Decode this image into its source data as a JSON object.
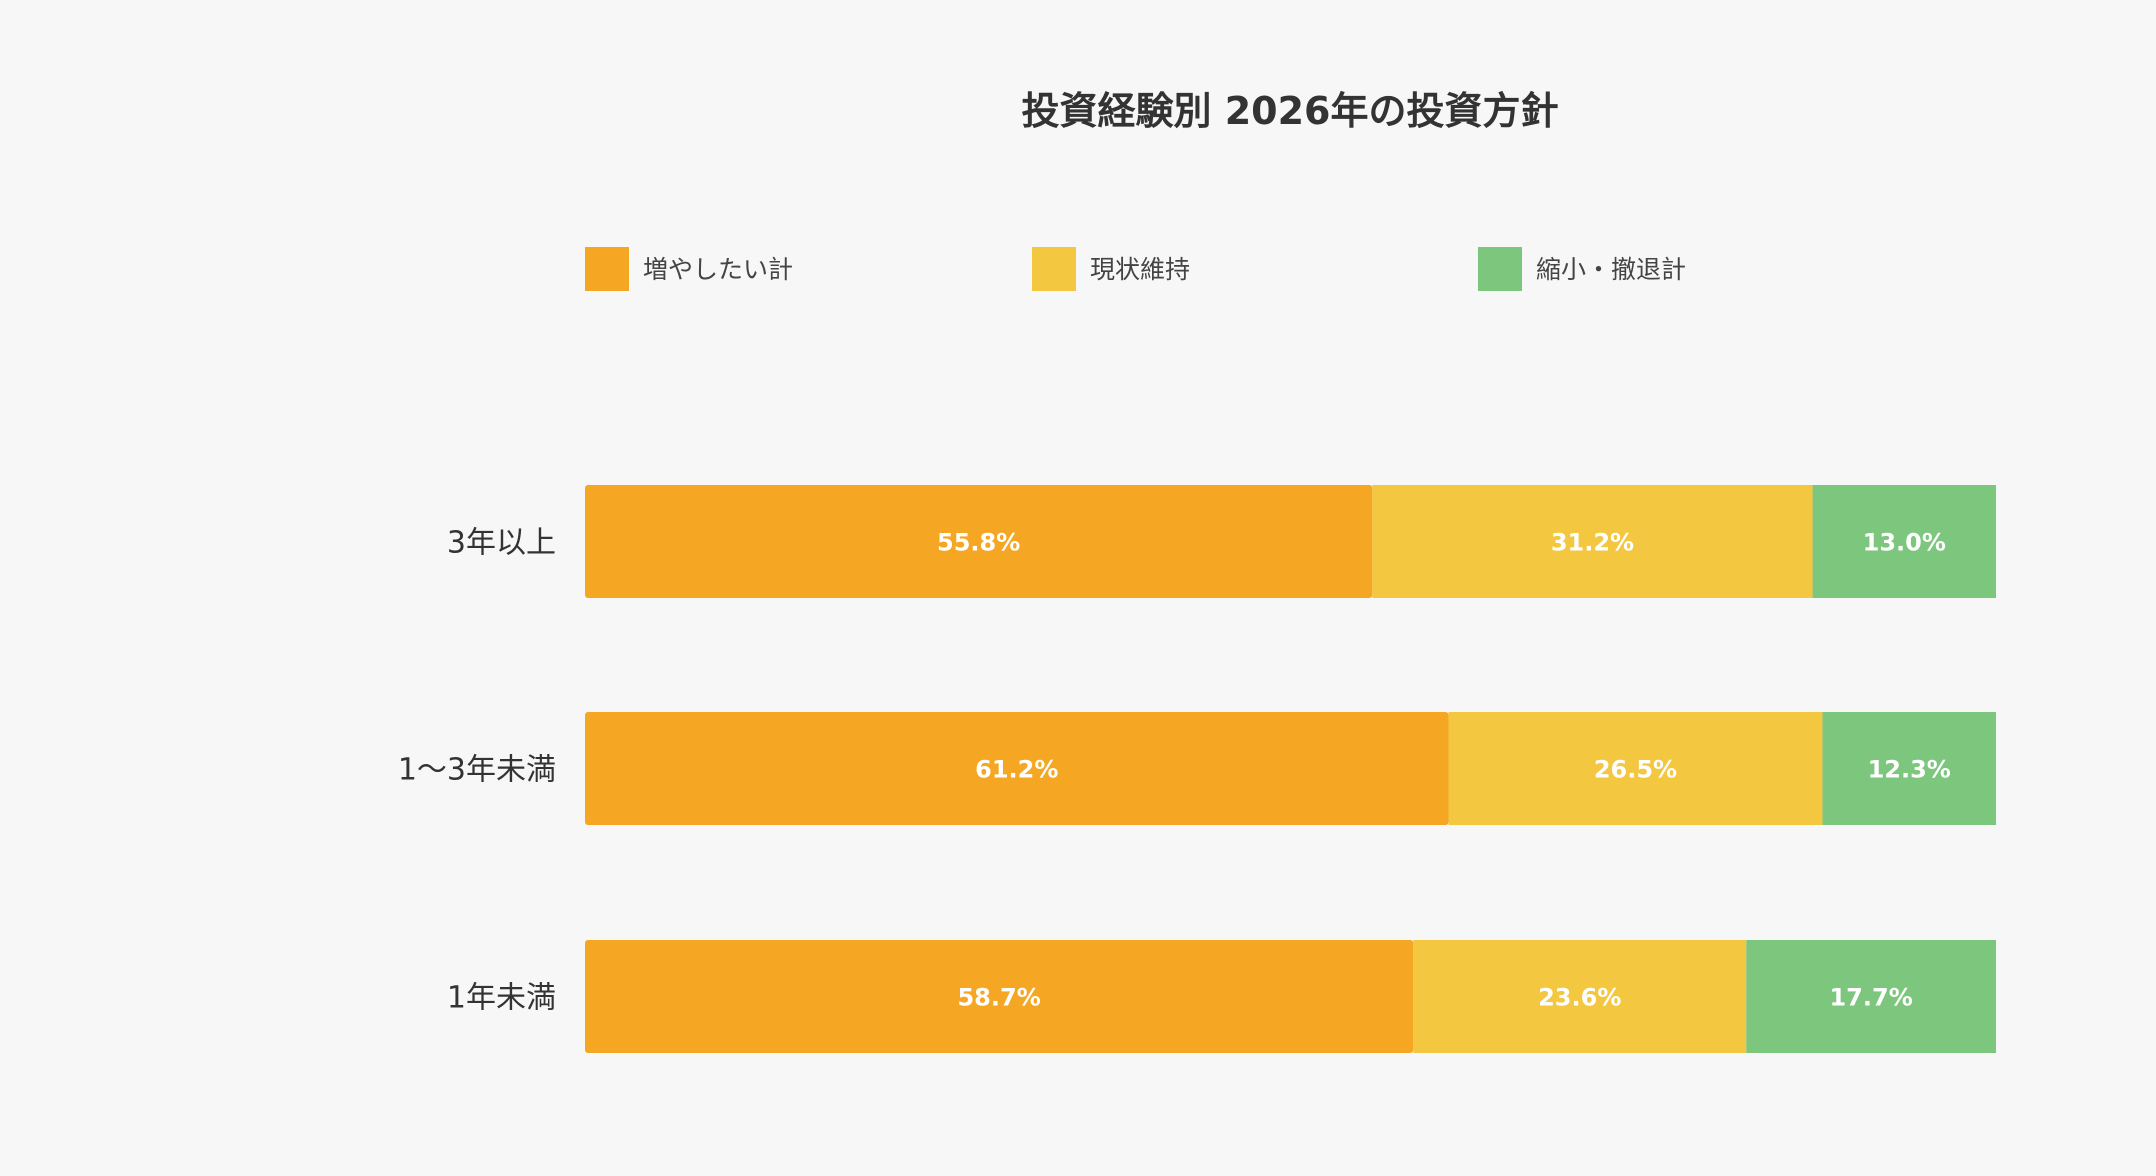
{
  "chart_data": {
    "type": "bar",
    "orientation": "horizontal",
    "stacked": true,
    "title": "投資経験別 2026年の投資方針",
    "categories": [
      "3年以上",
      "1〜3年未満",
      "1年未満"
    ],
    "series": [
      {
        "name": "増やしたい計",
        "color": "#F5A623",
        "values": [
          55.8,
          61.2,
          58.7
        ]
      },
      {
        "name": "現状維持",
        "color": "#F4C741",
        "values": [
          31.2,
          26.5,
          23.6
        ]
      },
      {
        "name": "縮小・撤退計",
        "color": "#7DC67E",
        "values": [
          13.0,
          12.3,
          17.7
        ]
      }
    ],
    "value_suffix": "%",
    "xlim": [
      0,
      100
    ],
    "legend_position": "top",
    "grid": false
  },
  "colors": {
    "background": "#f7f7f7",
    "title_text": "#333333",
    "category_text": "#333333",
    "legend_text": "#444444",
    "bar_label_text": "#ffffff"
  }
}
